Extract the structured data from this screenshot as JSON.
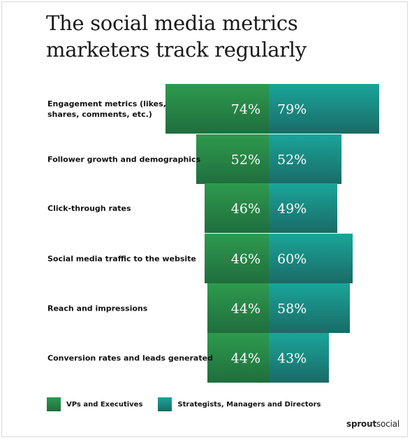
{
  "title": "The social media metrics marketers track regularly",
  "brand": {
    "bold": "sprout",
    "regular": "social"
  },
  "colors": {
    "vp_dark": "#1f6e3d",
    "vp_light": "#2e9a4e",
    "strat_dark": "#1a6b66",
    "strat_light": "#1aa59a"
  },
  "legend": [
    {
      "label": "VPs and Executives",
      "color_key": "vp"
    },
    {
      "label": "Strategists, Managers and Directors",
      "color_key": "strat"
    }
  ],
  "chart_data": {
    "type": "bar",
    "orientation": "horizontal-diverging",
    "title": "The social media metrics marketers track regularly",
    "categories": [
      "Engagement metrics (likes, shares, comments, etc.)",
      "Follower growth and demographics",
      "Click-through rates",
      "Social media traffic to the website",
      "Reach and impressions",
      "Conversion rates and leads generated"
    ],
    "category_lines": [
      [
        "Engagement metrics (likes,",
        "shares, comments, etc.)"
      ],
      [
        "Follower growth and demographics"
      ],
      [
        "Click-through rates"
      ],
      [
        "Social media traffic to the website"
      ],
      [
        "Reach and impressions"
      ],
      [
        "Conversion rates and leads generated"
      ]
    ],
    "series": [
      {
        "name": "VPs and Executives",
        "values": [
          74,
          52,
          46,
          46,
          44,
          44
        ],
        "labels": [
          "74%",
          "52%",
          "46%",
          "46%",
          "44%",
          "44%"
        ]
      },
      {
        "name": "Strategists, Managers and Directors",
        "values": [
          79,
          52,
          49,
          60,
          58,
          43
        ],
        "labels": [
          "79%",
          "52%",
          "49%",
          "60%",
          "58%",
          "43%"
        ]
      }
    ],
    "legend_position": "bottom-left",
    "grid": false
  }
}
